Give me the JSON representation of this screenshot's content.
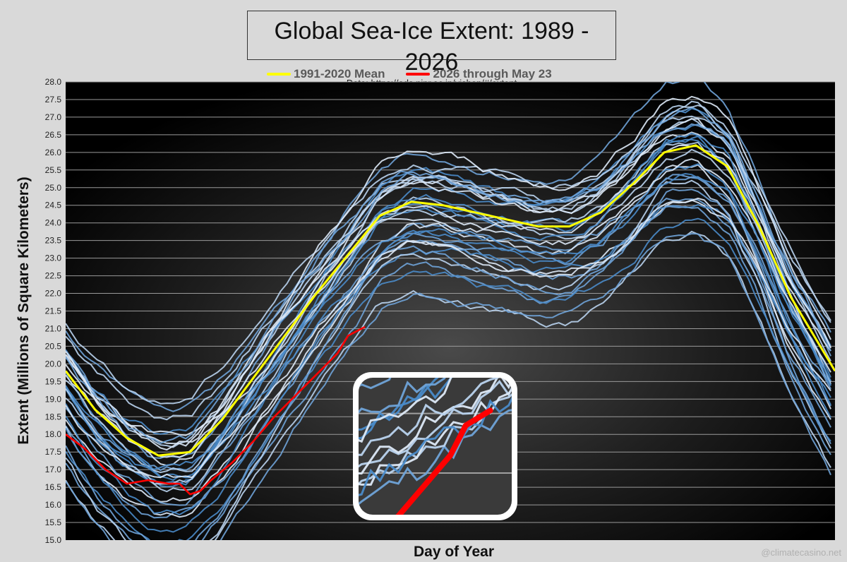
{
  "chart_data": {
    "type": "line",
    "title": "Global Sea-Ice Extent: 1989 - 2026",
    "subtitle": "Data: https://ads.nipr.ac.jp/vishop/#/extent",
    "xlabel": "Day of Year",
    "ylabel": "Extent (Millions of Square Kilometers)",
    "ylim": [
      15.0,
      28.0
    ],
    "y_ticks": [
      "15.0",
      "15.5",
      "16.0",
      "16.5",
      "17.0",
      "17.5",
      "18.0",
      "18.5",
      "19.0",
      "19.5",
      "20.0",
      "20.5",
      "21.0",
      "21.5",
      "22.0",
      "22.5",
      "23.0",
      "23.5",
      "24.0",
      "24.5",
      "25.0",
      "25.5",
      "26.0",
      "26.5",
      "27.0",
      "27.5",
      "28.0"
    ],
    "xlim": [
      1,
      366
    ],
    "grid": true,
    "legend_position": "top",
    "series": [
      {
        "name": "1991-2020 Mean",
        "color": "#ffff00",
        "x": [
          1,
          15,
          30,
          45,
          60,
          75,
          90,
          105,
          120,
          135,
          150,
          165,
          180,
          195,
          210,
          225,
          240,
          255,
          270,
          285,
          300,
          315,
          330,
          345,
          366
        ],
        "values": [
          19.8,
          18.7,
          17.9,
          17.4,
          17.5,
          18.4,
          19.6,
          20.8,
          22.0,
          23.1,
          24.2,
          24.6,
          24.5,
          24.3,
          24.1,
          23.9,
          23.9,
          24.3,
          25.1,
          26.0,
          26.2,
          25.6,
          23.9,
          21.9,
          19.8
        ]
      },
      {
        "name": "2026 through May 23",
        "color": "#ff0000",
        "x": [
          1,
          10,
          20,
          30,
          40,
          50,
          55,
          60,
          65,
          70,
          80,
          90,
          100,
          110,
          120,
          130,
          135,
          143
        ],
        "values": [
          18.0,
          17.6,
          17.0,
          16.6,
          16.7,
          16.6,
          16.6,
          16.3,
          16.4,
          16.7,
          17.2,
          17.8,
          18.5,
          19.1,
          19.7,
          20.3,
          20.8,
          21.05
        ]
      }
    ]
  },
  "legend": {
    "mean_label": "1991-2020 Mean",
    "current_label": "2026 through May 23"
  },
  "watermark": "@climatecasino.net",
  "colors": {
    "background": "#d9d9d9",
    "plot_center": "#3a3a3a",
    "plot_edge": "#000000",
    "year_lines": [
      "#4a8bc9",
      "#6fa3d8",
      "#b9d3ee",
      "#dde9f7"
    ]
  }
}
